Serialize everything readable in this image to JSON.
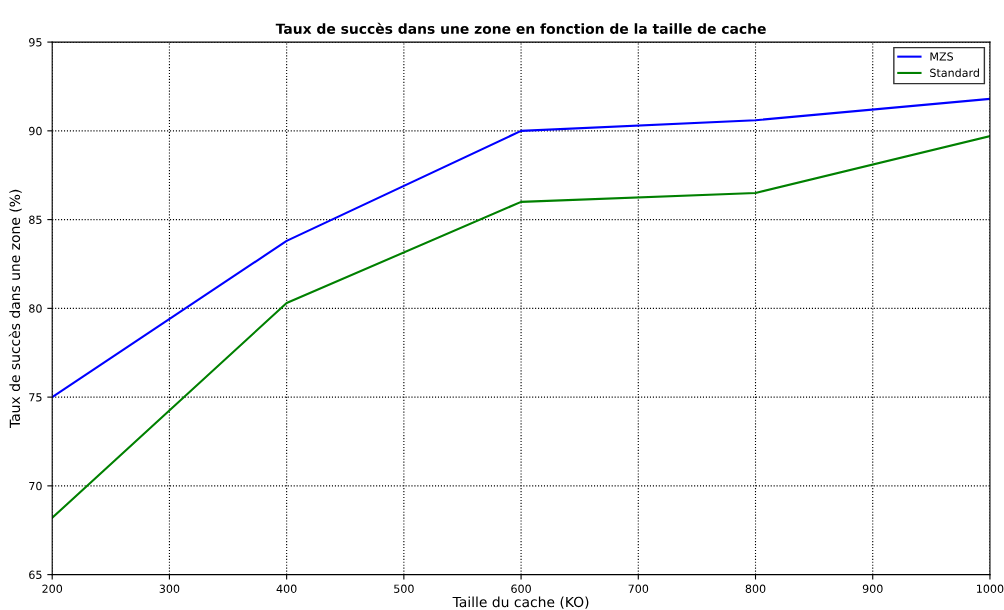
{
  "chart_data": {
    "type": "line",
    "title": "Taux de succès dans une zone en fonction de la taille de cache",
    "xlabel": "Taille du cache (KO)",
    "ylabel": "Taux de succès dans une zone (%)",
    "x": [
      200,
      400,
      600,
      800,
      1000
    ],
    "series": [
      {
        "name": "MZS",
        "color": "#0000ff",
        "values": [
          75.0,
          83.8,
          90.0,
          90.6,
          91.8
        ]
      },
      {
        "name": "Standard",
        "color": "#008000",
        "values": [
          68.2,
          80.3,
          86.0,
          86.5,
          89.7
        ]
      }
    ],
    "xlim": [
      200,
      1000
    ],
    "xticks": [
      200,
      300,
      400,
      500,
      600,
      700,
      800,
      900,
      1000
    ],
    "ylim": [
      65,
      95
    ],
    "yticks": [
      65,
      70,
      75,
      80,
      85,
      90,
      95
    ],
    "grid": true,
    "legend": "top right",
    "marker": "none",
    "line_style": "solid"
  }
}
